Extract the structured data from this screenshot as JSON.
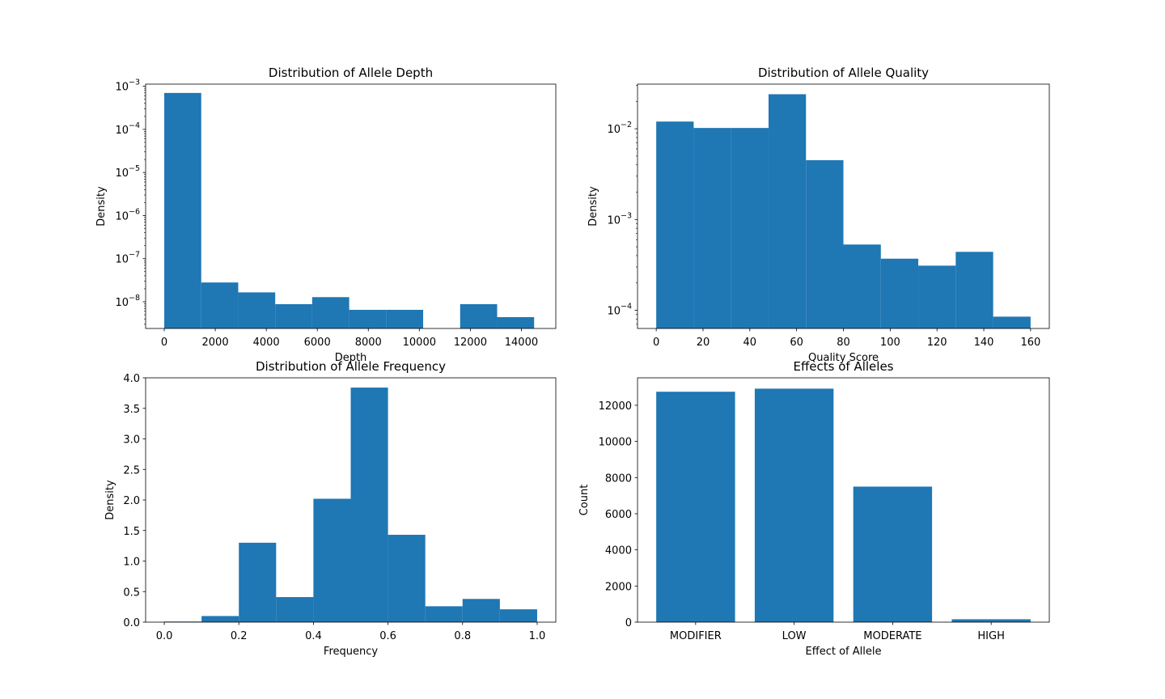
{
  "figure": {
    "background": "#ffffff",
    "bar_color": "#1f77b4"
  },
  "chart_data": [
    {
      "type": "bar",
      "title": "Distribution of Allele Depth",
      "xlabel": "Depth",
      "ylabel": "Density",
      "yscale": "log",
      "xlim": [
        -730,
        15350
      ],
      "ylim": [
        2.4e-09,
        0.00112
      ],
      "xticks": [
        0,
        2000,
        4000,
        6000,
        8000,
        10000,
        12000,
        14000
      ],
      "yticks": [
        {
          "value": 1e-08,
          "base": "10",
          "exp": "−8"
        },
        {
          "value": 1e-07,
          "base": "10",
          "exp": "−7"
        },
        {
          "value": 1e-06,
          "base": "10",
          "exp": "−6"
        },
        {
          "value": 1e-05,
          "base": "10",
          "exp": "−5"
        },
        {
          "value": 0.0001,
          "base": "10",
          "exp": "−4"
        },
        {
          "value": 0.001,
          "base": "10",
          "exp": "−3"
        }
      ],
      "bin_edges": [
        0,
        1450,
        2900,
        4350,
        5800,
        7250,
        8700,
        10150,
        11600,
        13050,
        14500
      ],
      "values": [
        0.0007,
        2.8e-08,
        1.65e-08,
        8.8e-09,
        1.28e-08,
        6.5e-09,
        6.5e-09,
        0,
        8.8e-09,
        4.4e-09
      ]
    },
    {
      "type": "bar",
      "title": "Distribution of Allele Quality",
      "xlabel": "Quality Score",
      "ylabel": "Density",
      "yscale": "log",
      "xlim": [
        -8,
        168
      ],
      "ylim": [
        6.3e-05,
        0.031
      ],
      "xticks": [
        0,
        20,
        40,
        60,
        80,
        100,
        120,
        140,
        160
      ],
      "yticks": [
        {
          "value": 0.0001,
          "base": "10",
          "exp": "−4"
        },
        {
          "value": 0.001,
          "base": "10",
          "exp": "−3"
        },
        {
          "value": 0.01,
          "base": "10",
          "exp": "−2"
        }
      ],
      "bin_edges": [
        0,
        16,
        32,
        48,
        64,
        80,
        96,
        112,
        128,
        144,
        160
      ],
      "values": [
        0.012,
        0.0102,
        0.0102,
        0.024,
        0.0045,
        0.00053,
        0.00037,
        0.00031,
        0.00044,
        8.5e-05
      ]
    },
    {
      "type": "bar",
      "title": "Distribution of Allele Frequency",
      "xlabel": "Frequency",
      "ylabel": "Density",
      "yscale": "linear",
      "xlim": [
        -0.05,
        1.05
      ],
      "ylim": [
        0,
        4.0
      ],
      "xticks": [
        "0.0",
        "0.2",
        "0.4",
        "0.6",
        "0.8",
        "1.0"
      ],
      "yticks": [
        "0.0",
        "0.5",
        "1.0",
        "1.5",
        "2.0",
        "2.5",
        "3.0",
        "3.5",
        "4.0"
      ],
      "bin_edges": [
        0.0,
        0.1,
        0.2,
        0.3,
        0.4,
        0.5,
        0.6,
        0.7,
        0.8,
        0.9,
        1.0
      ],
      "values": [
        0.01,
        0.1,
        1.3,
        0.41,
        2.02,
        3.84,
        1.43,
        0.26,
        0.38,
        0.21
      ]
    },
    {
      "type": "bar",
      "title": "Effects of Alleles",
      "xlabel": "Effect of Allele",
      "ylabel": "Count",
      "yscale": "linear",
      "ylim": [
        0,
        13520
      ],
      "yticks": [
        0,
        2000,
        4000,
        6000,
        8000,
        10000,
        12000
      ],
      "categories": [
        "MODIFIER",
        "LOW",
        "MODERATE",
        "HIGH"
      ],
      "values": [
        12750,
        12920,
        7500,
        160
      ]
    }
  ]
}
